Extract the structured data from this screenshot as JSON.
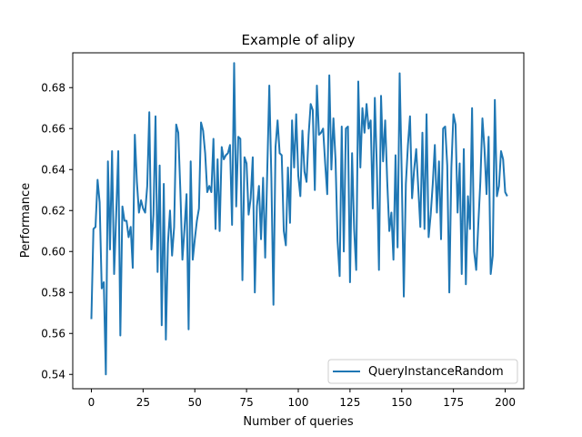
{
  "chart_data": {
    "type": "line",
    "title": "Example of alipy",
    "xlabel": "Number of queries",
    "ylabel": "Performance",
    "xlim": [
      -9,
      209
    ],
    "ylim": [
      0.533,
      0.697
    ],
    "xticks": [
      0,
      25,
      50,
      75,
      100,
      125,
      150,
      175,
      200
    ],
    "yticks": [
      0.54,
      0.56,
      0.58,
      0.6,
      0.62,
      0.64,
      0.66,
      0.68
    ],
    "ytick_labels": [
      "0.54",
      "0.56",
      "0.58",
      "0.60",
      "0.62",
      "0.64",
      "0.66",
      "0.68"
    ],
    "grid": false,
    "legend_position": "lower-right",
    "series_color": "#1f77b4",
    "series": [
      {
        "name": "QueryInstanceRandom",
        "x": [
          0,
          1,
          2,
          3,
          4,
          5,
          6,
          7,
          8,
          9,
          10,
          11,
          12,
          13,
          14,
          15,
          16,
          17,
          18,
          19,
          20,
          21,
          22,
          23,
          24,
          25,
          26,
          27,
          28,
          29,
          30,
          31,
          32,
          33,
          34,
          35,
          36,
          37,
          38,
          39,
          40,
          41,
          42,
          43,
          44,
          45,
          46,
          47,
          48,
          49,
          50,
          51,
          52,
          53,
          54,
          55,
          56,
          57,
          58,
          59,
          60,
          61,
          62,
          63,
          64,
          65,
          66,
          67,
          68,
          69,
          70,
          71,
          72,
          73,
          74,
          75,
          76,
          77,
          78,
          79,
          80,
          81,
          82,
          83,
          84,
          85,
          86,
          87,
          88,
          89,
          90,
          91,
          92,
          93,
          94,
          95,
          96,
          97,
          98,
          99,
          100,
          101,
          102,
          103,
          104,
          105,
          106,
          107,
          108,
          109,
          110,
          111,
          112,
          113,
          114,
          115,
          116,
          117,
          118,
          119,
          120,
          121,
          122,
          123,
          124,
          125,
          126,
          127,
          128,
          129,
          130,
          131,
          132,
          133,
          134,
          135,
          136,
          137,
          138,
          139,
          140,
          141,
          142,
          143,
          144,
          145,
          146,
          147,
          148,
          149,
          150,
          151,
          152,
          153,
          154,
          155,
          156,
          157,
          158,
          159,
          160,
          161,
          162,
          163,
          164,
          165,
          166,
          167,
          168,
          169,
          170,
          171,
          172,
          173,
          174,
          175,
          176,
          177,
          178,
          179,
          180,
          181,
          182,
          183,
          184,
          185,
          186,
          187,
          188,
          189,
          190,
          191,
          192,
          193,
          194,
          195,
          196,
          197,
          198,
          199,
          200,
          201
        ],
        "values": [
          0.567,
          0.611,
          0.612,
          0.635,
          0.624,
          0.582,
          0.585,
          0.54,
          0.644,
          0.601,
          0.649,
          0.589,
          0.618,
          0.649,
          0.559,
          0.622,
          0.615,
          0.615,
          0.607,
          0.612,
          0.592,
          0.657,
          0.634,
          0.619,
          0.625,
          0.621,
          0.619,
          0.632,
          0.668,
          0.601,
          0.618,
          0.666,
          0.59,
          0.642,
          0.564,
          0.633,
          0.557,
          0.604,
          0.62,
          0.598,
          0.612,
          0.662,
          0.658,
          0.63,
          0.596,
          0.611,
          0.628,
          0.562,
          0.644,
          0.596,
          0.606,
          0.615,
          0.621,
          0.663,
          0.659,
          0.648,
          0.629,
          0.632,
          0.629,
          0.655,
          0.611,
          0.645,
          0.61,
          0.651,
          0.645,
          0.647,
          0.648,
          0.652,
          0.613,
          0.692,
          0.622,
          0.656,
          0.655,
          0.586,
          0.646,
          0.643,
          0.618,
          0.626,
          0.646,
          0.58,
          0.622,
          0.632,
          0.606,
          0.636,
          0.597,
          0.639,
          0.681,
          0.636,
          0.574,
          0.651,
          0.664,
          0.648,
          0.647,
          0.61,
          0.603,
          0.641,
          0.614,
          0.664,
          0.641,
          0.667,
          0.637,
          0.627,
          0.659,
          0.639,
          0.634,
          0.657,
          0.672,
          0.669,
          0.63,
          0.681,
          0.657,
          0.658,
          0.66,
          0.643,
          0.628,
          0.686,
          0.64,
          0.665,
          0.645,
          0.605,
          0.588,
          0.661,
          0.6,
          0.66,
          0.661,
          0.585,
          0.648,
          0.611,
          0.591,
          0.683,
          0.641,
          0.67,
          0.658,
          0.672,
          0.66,
          0.664,
          0.621,
          0.675,
          0.64,
          0.591,
          0.676,
          0.644,
          0.664,
          0.634,
          0.61,
          0.619,
          0.596,
          0.647,
          0.602,
          0.687,
          0.638,
          0.578,
          0.633,
          0.652,
          0.666,
          0.626,
          0.64,
          0.65,
          0.631,
          0.612,
          0.658,
          0.611,
          0.667,
          0.607,
          0.618,
          0.633,
          0.652,
          0.619,
          0.644,
          0.606,
          0.66,
          0.661,
          0.642,
          0.58,
          0.641,
          0.667,
          0.662,
          0.619,
          0.643,
          0.589,
          0.65,
          0.584,
          0.627,
          0.611,
          0.67,
          0.6,
          0.591,
          0.613,
          0.634,
          0.665,
          0.65,
          0.628,
          0.656,
          0.589,
          0.598,
          0.674,
          0.627,
          0.632,
          0.649,
          0.645,
          0.629,
          0.627
        ]
      }
    ]
  }
}
